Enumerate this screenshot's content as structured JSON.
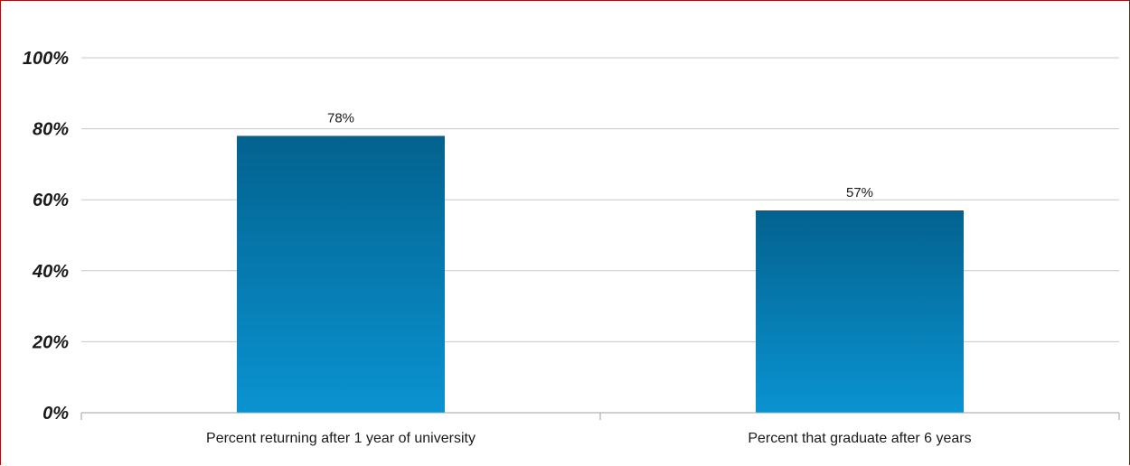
{
  "chart_data": {
    "type": "bar",
    "categories": [
      "Percent returning after 1 year of university",
      "Percent that graduate after 6 years"
    ],
    "values": [
      78,
      57
    ],
    "data_labels": [
      "78%",
      "57%"
    ],
    "ylim": [
      0,
      100
    ],
    "yticks": [
      0,
      20,
      40,
      60,
      80,
      100
    ],
    "ytick_labels": [
      "0%",
      "20%",
      "40%",
      "60%",
      "80%",
      "100%"
    ],
    "grid": true,
    "legend": "none",
    "title": "",
    "xlabel": "",
    "ylabel": "",
    "colors": {
      "bar_top": "#03628f",
      "bar_bottom": "#0a93d1",
      "grid": "#c8c8c8",
      "frame": "#8b1a1a"
    }
  }
}
